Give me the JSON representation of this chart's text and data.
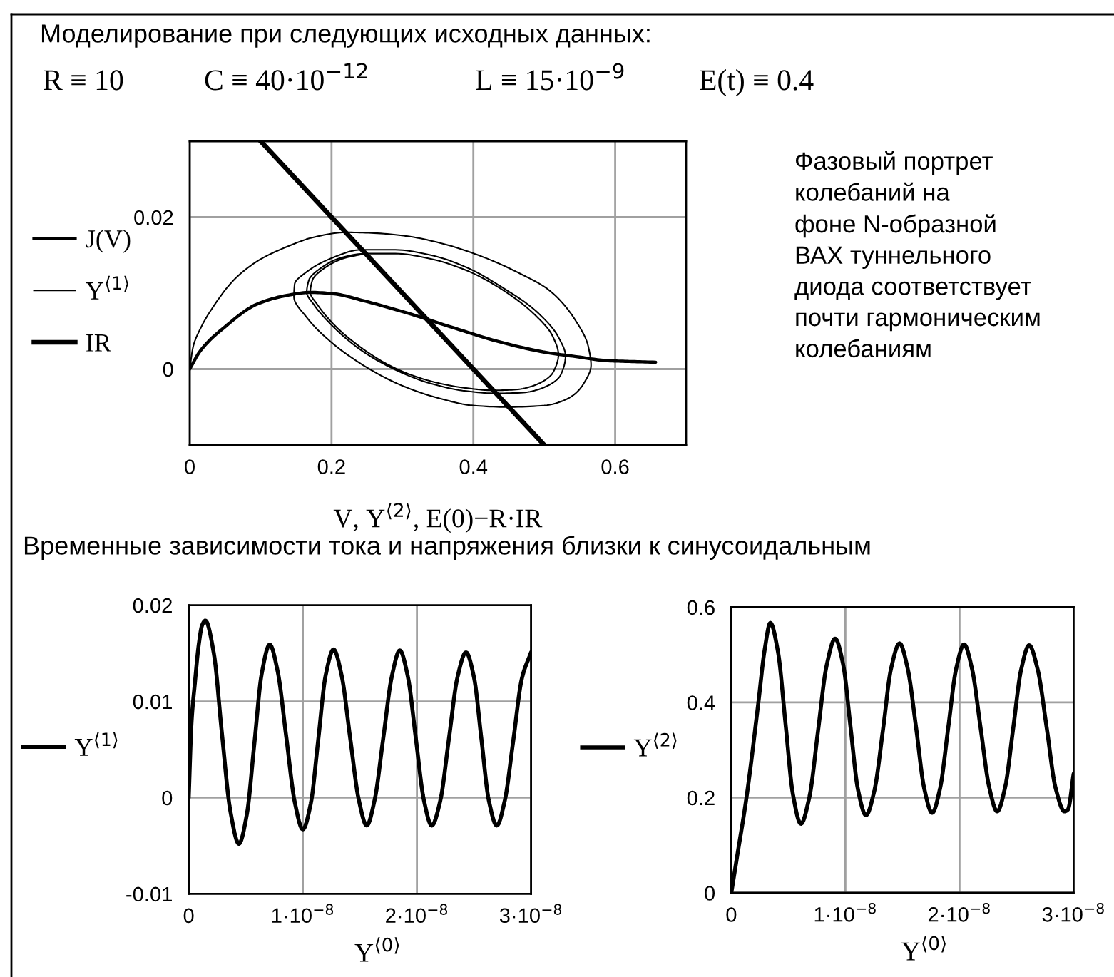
{
  "chart_data": [
    {
      "type": "line",
      "title": "Моделирование при следующих исходных данных:",
      "annotations": [
        "R ≡ 10",
        "C ≡ 40·10$^{−12}$",
        "L ≡ 15·10$^{−9}$",
        "E(t) ≡ 0.4",
        "Фазовый портрет\nколебаний на\nфоне N-образной\nВАХ туннельного\nдиода соответствует\nпочти гармоническим\nколебаниям"
      ],
      "xlabel": "V, Y$^{⟨2⟩}$, E(0)−R·IR",
      "xlim": [
        0,
        0.7
      ],
      "ylim": [
        -0.01,
        0.03
      ],
      "xticks": [
        0,
        0.2,
        0.4,
        0.6
      ],
      "yticks": [
        0,
        0.02
      ],
      "grid": true,
      "legend": "left",
      "series": [
        {
          "name": "J(V)",
          "color": "#000000",
          "x": [
            0,
            0.015,
            0.049,
            0.096,
            0.137,
            0.17,
            0.204,
            0.245,
            0.306,
            0.373,
            0.44,
            0.508,
            0.54,
            0.59,
            0.62,
            0.657
          ],
          "values": [
            0,
            0.0024,
            0.0055,
            0.0086,
            0.0097,
            0.0101,
            0.0099,
            0.009,
            0.0074,
            0.0054,
            0.0035,
            0.0021,
            0.0017,
            0.0011,
            0.001,
            0.0009
          ]
        },
        {
          "name": "Y$^{⟨1⟩}$",
          "color": "#000000",
          "x": [
            0,
            0.005,
            0.016,
            0.036,
            0.063,
            0.097,
            0.137,
            0.177,
            0.22,
            0.26,
            0.306,
            0.353,
            0.407,
            0.461,
            0.508,
            0.542,
            0.562,
            0.566,
            0.555,
            0.535,
            0.5,
            0.447,
            0.4,
            0.35,
            0.3,
            0.25,
            0.2,
            0.165,
            0.147,
            0.148,
            0.165,
            0.2,
            0.242,
            0.29,
            0.34,
            0.39,
            0.44,
            0.49,
            0.52,
            0.53,
            0.523,
            0.5,
            0.47,
            0.432,
            0.39,
            0.34,
            0.29,
            0.24,
            0.2,
            0.175,
            0.165,
            0.168,
            0.185,
            0.215,
            0.248,
            0.29,
            0.34,
            0.39,
            0.44,
            0.485,
            0.512,
            0.52,
            0.512,
            0.49,
            0.46,
            0.428,
            0.39,
            0.34,
            0.29,
            0.245,
            0.205,
            0.18,
            0.17,
            0.173,
            0.19,
            0.218,
            0.248
          ],
          "values": [
            0,
            0.003,
            0.0055,
            0.0086,
            0.0118,
            0.0143,
            0.0161,
            0.0174,
            0.018,
            0.0179,
            0.0175,
            0.0166,
            0.015,
            0.0128,
            0.0103,
            0.0067,
            0.003,
            0.0005,
            -0.002,
            -0.0038,
            -0.0048,
            -0.005,
            -0.0048,
            -0.0038,
            -0.0022,
            0.0002,
            0.0035,
            0.0068,
            0.0095,
            0.0112,
            0.0128,
            0.0146,
            0.0157,
            0.0157,
            0.015,
            0.0134,
            0.0108,
            0.0075,
            0.0042,
            0.0017,
            -0.0008,
            -0.0024,
            -0.0031,
            -0.0032,
            -0.0029,
            -0.0019,
            -0.0001,
            0.0026,
            0.0058,
            0.0085,
            0.0101,
            0.0117,
            0.0133,
            0.0147,
            0.0152,
            0.0152,
            0.0145,
            0.013,
            0.0105,
            0.0073,
            0.0043,
            0.0019,
            -0.0005,
            -0.002,
            -0.0027,
            -0.0028,
            -0.0025,
            -0.0016,
            0.0001,
            0.0026,
            0.0057,
            0.0085,
            0.0101,
            0.0117,
            0.0133,
            0.0146,
            0.0152
          ]
        },
        {
          "name": "IR",
          "color": "#000000",
          "x": [
            0.1,
            0.5
          ],
          "values": [
            0.03,
            -0.01
          ]
        }
      ]
    },
    {
      "type": "line",
      "title": "Временные зависимости тока и напряжения близки к синусоидальным",
      "xlabel": "Y$^{⟨0⟩}$",
      "xlim": [
        0,
        3e-08
      ],
      "ylim": [
        -0.01,
        0.02
      ],
      "xticks": [
        0,
        {
          "value": 1e-08,
          "label": "1·10$^{−8}$"
        },
        {
          "value": 2e-08,
          "label": "2·10$^{−8}$"
        },
        {
          "value": 3e-08,
          "label": "3·10$^{−8}$"
        }
      ],
      "yticks": [
        -0.01,
        0,
        0.01,
        0.02
      ],
      "grid": true,
      "legend": "left",
      "series": [
        {
          "name": "Y$^{⟨1⟩}$",
          "color": "#000000",
          "x": [
            0,
            2.5e-10,
            5.4e-10,
            8.8e-10,
            1.17e-09,
            1.46e-09,
            2.2e-09,
            2.9e-09,
            3.65e-09,
            4.4e-09,
            5.1e-09,
            5.75e-09,
            6.4e-09,
            7.1e-09,
            7.8e-09,
            8.55e-09,
            9.3e-09,
            1e-08,
            1.07e-08,
            1.135e-08,
            1.2e-08,
            1.27e-08,
            1.34e-08,
            1.415e-08,
            1.49e-08,
            1.56e-08,
            1.63e-08,
            1.705e-08,
            1.78e-08,
            1.85e-08,
            1.92e-08,
            1.99e-08,
            2.06e-08,
            2.13e-08,
            2.205e-08,
            2.28e-08,
            2.355e-08,
            2.43e-08,
            2.5e-08,
            2.565e-08,
            2.63e-08,
            2.7e-08,
            2.77e-08,
            2.845e-08,
            2.92e-08,
            3e-08
          ],
          "values": [
            0,
            0.0079,
            0.0119,
            0.0159,
            0.0179,
            0.0184,
            0.015,
            0.0068,
            -0.0014,
            -0.0048,
            -0.0017,
            0.0056,
            0.0129,
            0.0159,
            0.0131,
            0.0063,
            -0.0005,
            -0.0033,
            -0.0006,
            0.006,
            0.0127,
            0.0154,
            0.0127,
            0.0062,
            -0.0002,
            -0.0029,
            -0.0002,
            0.0062,
            0.0126,
            0.0153,
            0.0126,
            0.0062,
            -0.0002,
            -0.0029,
            -0.0003,
            0.0061,
            0.0125,
            0.0151,
            0.0125,
            0.0061,
            -0.0003,
            -0.0029,
            -0.0003,
            0.006,
            0.0124,
            0.0151
          ]
        }
      ]
    },
    {
      "type": "line",
      "xlabel": "Y$^{⟨0⟩}$",
      "xlim": [
        0,
        3e-08
      ],
      "ylim": [
        0,
        0.6
      ],
      "xticks": [
        0,
        {
          "value": 1e-08,
          "label": "1·10$^{−8}$"
        },
        {
          "value": 2e-08,
          "label": "2·10$^{−8}$"
        },
        {
          "value": 3e-08,
          "label": "3·10$^{−8}$"
        }
      ],
      "yticks": [
        0,
        0.2,
        0.4,
        0.6
      ],
      "grid": true,
      "legend": "left",
      "series": [
        {
          "name": "Y$^{⟨2⟩}$",
          "color": "#000000",
          "x": [
            0,
            5e-10,
            1.33e-09,
            2.375e-09,
            2.92e-09,
            3.42e-09,
            4.1e-09,
            4.75e-09,
            5.4e-09,
            6.1e-09,
            6.85e-09,
            7.6e-09,
            8.35e-09,
            9.1e-09,
            9.8e-09,
            1.045e-08,
            1.11e-08,
            1.18e-08,
            1.255e-08,
            1.33e-08,
            1.4e-08,
            1.475e-08,
            1.545e-08,
            1.62e-08,
            1.69e-08,
            1.76e-08,
            1.83e-08,
            1.9e-08,
            1.97e-08,
            2.04e-08,
            2.11e-08,
            2.185e-08,
            2.26e-08,
            2.33e-08,
            2.4e-08,
            2.47e-08,
            2.54e-08,
            2.61e-08,
            2.685e-08,
            2.765e-08,
            2.84e-08,
            2.92e-08,
            2.95e-08,
            3e-08
          ],
          "values": [
            0,
            0.075,
            0.2,
            0.4,
            0.51,
            0.567,
            0.505,
            0.356,
            0.207,
            0.145,
            0.202,
            0.34,
            0.477,
            0.534,
            0.48,
            0.348,
            0.217,
            0.163,
            0.216,
            0.344,
            0.471,
            0.524,
            0.472,
            0.346,
            0.22,
            0.168,
            0.22,
            0.345,
            0.47,
            0.522,
            0.47,
            0.346,
            0.222,
            0.171,
            0.222,
            0.345,
            0.469,
            0.52,
            0.469,
            0.345,
            0.222,
            0.171,
            0.175,
            0.25
          ]
        }
      ]
    }
  ]
}
